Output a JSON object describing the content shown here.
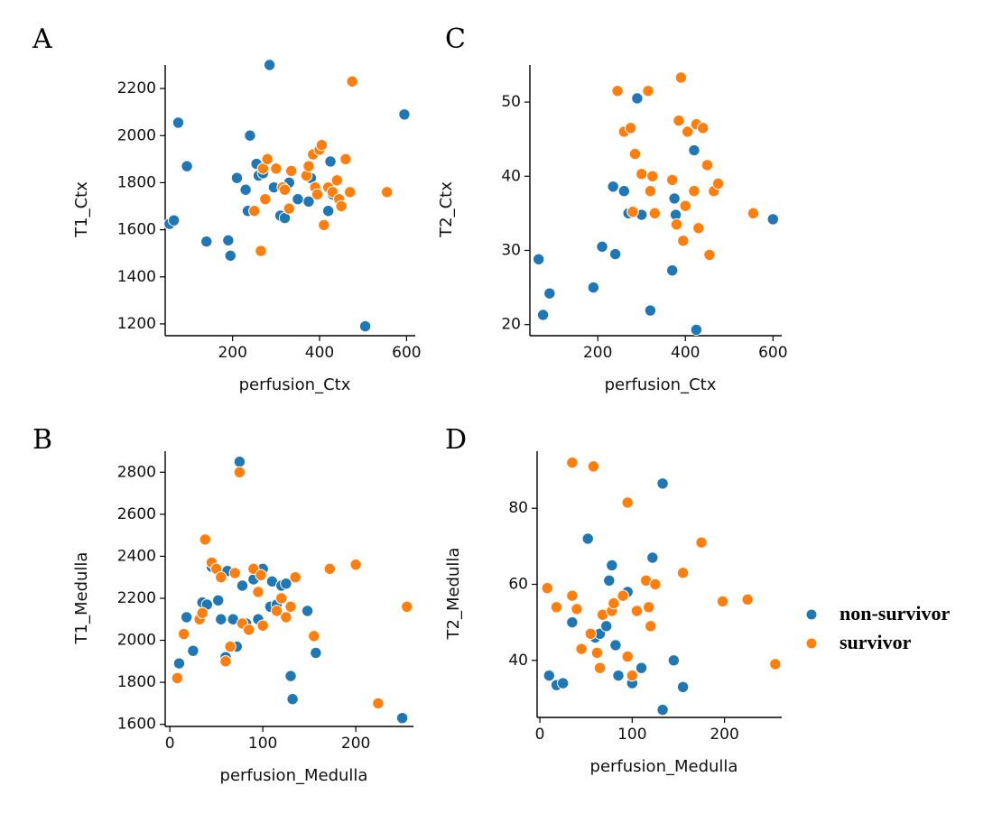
{
  "colors": {
    "non_survivor": "#1f77b4",
    "survivor": "#ff7f0e"
  },
  "legend": {
    "entries": [
      {
        "label": "non-survivor",
        "series": "non_survivor"
      },
      {
        "label": "survivor",
        "series": "survivor"
      }
    ]
  },
  "chart_data": [
    {
      "panel": "A",
      "type": "scatter",
      "xlabel": "perfusion_Ctx",
      "ylabel": "T1_Ctx",
      "xlim": [
        45,
        620
      ],
      "ylim": [
        1150,
        2300
      ],
      "xticks": [
        200,
        400,
        600
      ],
      "yticks": [
        1200,
        1400,
        1600,
        1800,
        2000,
        2200
      ],
      "series": [
        {
          "name": "non-survivor",
          "key": "non_survivor",
          "points": [
            [
              55,
              1625
            ],
            [
              65,
              1640
            ],
            [
              75,
              2055
            ],
            [
              95,
              1870
            ],
            [
              140,
              1550
            ],
            [
              190,
              1555
            ],
            [
              195,
              1490
            ],
            [
              210,
              1820
            ],
            [
              230,
              1770
            ],
            [
              235,
              1680
            ],
            [
              240,
              2000
            ],
            [
              255,
              1880
            ],
            [
              260,
              1830
            ],
            [
              270,
              1840
            ],
            [
              285,
              2300
            ],
            [
              295,
              1780
            ],
            [
              310,
              1660
            ],
            [
              320,
              1650
            ],
            [
              330,
              1800
            ],
            [
              350,
              1730
            ],
            [
              375,
              1720
            ],
            [
              380,
              1820
            ],
            [
              390,
              1780
            ],
            [
              420,
              1680
            ],
            [
              425,
              1890
            ],
            [
              430,
              1750
            ],
            [
              505,
              1190
            ],
            [
              595,
              2090
            ]
          ]
        },
        {
          "name": "survivor",
          "key": "survivor",
          "points": [
            [
              250,
              1680
            ],
            [
              265,
              1510
            ],
            [
              270,
              1860
            ],
            [
              275,
              1730
            ],
            [
              280,
              1900
            ],
            [
              300,
              1860
            ],
            [
              315,
              1780
            ],
            [
              320,
              1770
            ],
            [
              330,
              1690
            ],
            [
              335,
              1850
            ],
            [
              370,
              1830
            ],
            [
              375,
              1870
            ],
            [
              385,
              1920
            ],
            [
              390,
              1780
            ],
            [
              395,
              1750
            ],
            [
              400,
              1940
            ],
            [
              405,
              1960
            ],
            [
              410,
              1620
            ],
            [
              420,
              1780
            ],
            [
              430,
              1760
            ],
            [
              440,
              1810
            ],
            [
              445,
              1730
            ],
            [
              450,
              1700
            ],
            [
              460,
              1900
            ],
            [
              470,
              1760
            ],
            [
              475,
              2230
            ],
            [
              555,
              1760
            ]
          ]
        }
      ]
    },
    {
      "panel": "B",
      "type": "scatter",
      "xlabel": "perfusion_Medulla",
      "ylabel": "T1_Medulla",
      "xlim": [
        -5,
        262
      ],
      "ylim": [
        1590,
        2900
      ],
      "xticks": [
        0,
        100,
        200
      ],
      "yticks": [
        1600,
        1800,
        2000,
        2200,
        2400,
        2600,
        2800
      ],
      "series": [
        {
          "name": "non-survivor",
          "key": "non_survivor",
          "points": [
            [
              10,
              1890
            ],
            [
              18,
              2110
            ],
            [
              25,
              1950
            ],
            [
              35,
              2180
            ],
            [
              40,
              2170
            ],
            [
              45,
              2350
            ],
            [
              52,
              2190
            ],
            [
              55,
              2100
            ],
            [
              60,
              1920
            ],
            [
              62,
              2330
            ],
            [
              68,
              2100
            ],
            [
              72,
              1970
            ],
            [
              75,
              2850
            ],
            [
              78,
              2260
            ],
            [
              82,
              2080
            ],
            [
              90,
              2290
            ],
            [
              95,
              2100
            ],
            [
              100,
              2340
            ],
            [
              108,
              2160
            ],
            [
              110,
              2280
            ],
            [
              115,
              2170
            ],
            [
              120,
              2260
            ],
            [
              125,
              2270
            ],
            [
              130,
              1830
            ],
            [
              132,
              1720
            ],
            [
              148,
              2140
            ],
            [
              157,
              1940
            ],
            [
              250,
              1630
            ]
          ]
        },
        {
          "name": "survivor",
          "key": "survivor",
          "points": [
            [
              8,
              1820
            ],
            [
              15,
              2030
            ],
            [
              32,
              2100
            ],
            [
              35,
              2130
            ],
            [
              38,
              2480
            ],
            [
              45,
              2370
            ],
            [
              50,
              2340
            ],
            [
              55,
              2300
            ],
            [
              60,
              1900
            ],
            [
              65,
              1970
            ],
            [
              70,
              2320
            ],
            [
              75,
              2800
            ],
            [
              78,
              2080
            ],
            [
              85,
              2050
            ],
            [
              90,
              2340
            ],
            [
              95,
              2230
            ],
            [
              98,
              2310
            ],
            [
              100,
              2070
            ],
            [
              115,
              2140
            ],
            [
              120,
              2200
            ],
            [
              125,
              2110
            ],
            [
              130,
              2160
            ],
            [
              135,
              2300
            ],
            [
              155,
              2020
            ],
            [
              172,
              2340
            ],
            [
              200,
              2360
            ],
            [
              224,
              1700
            ],
            [
              255,
              2160
            ]
          ]
        }
      ]
    },
    {
      "panel": "C",
      "type": "scatter",
      "xlabel": "perfusion_Ctx",
      "ylabel": "T2_Ctx",
      "xlim": [
        45,
        620
      ],
      "ylim": [
        18.5,
        55
      ],
      "xticks": [
        200,
        400,
        600
      ],
      "yticks": [
        20,
        30,
        40,
        50
      ],
      "series": [
        {
          "name": "non-survivor",
          "key": "non_survivor",
          "points": [
            [
              65,
              28.8
            ],
            [
              75,
              21.3
            ],
            [
              90,
              24.2
            ],
            [
              190,
              25.0
            ],
            [
              210,
              30.5
            ],
            [
              235,
              38.6
            ],
            [
              240,
              29.5
            ],
            [
              260,
              38.0
            ],
            [
              270,
              35.0
            ],
            [
              280,
              35.3
            ],
            [
              290,
              50.5
            ],
            [
              300,
              34.8
            ],
            [
              320,
              21.9
            ],
            [
              325,
              40.0
            ],
            [
              370,
              27.3
            ],
            [
              375,
              37.0
            ],
            [
              378,
              34.8
            ],
            [
              420,
              43.5
            ],
            [
              425,
              19.3
            ],
            [
              600,
              34.2
            ]
          ]
        },
        {
          "name": "survivor",
          "key": "survivor",
          "points": [
            [
              245,
              51.5
            ],
            [
              260,
              46.0
            ],
            [
              275,
              46.5
            ],
            [
              280,
              35.2
            ],
            [
              285,
              43.0
            ],
            [
              300,
              40.3
            ],
            [
              315,
              51.5
            ],
            [
              320,
              38.0
            ],
            [
              325,
              40.0
            ],
            [
              330,
              35.0
            ],
            [
              370,
              39.5
            ],
            [
              380,
              33.5
            ],
            [
              385,
              47.5
            ],
            [
              390,
              53.3
            ],
            [
              395,
              31.3
            ],
            [
              400,
              36.0
            ],
            [
              405,
              46.0
            ],
            [
              420,
              38.0
            ],
            [
              425,
              47.0
            ],
            [
              430,
              33.0
            ],
            [
              440,
              46.5
            ],
            [
              450,
              41.5
            ],
            [
              455,
              29.4
            ],
            [
              465,
              38.0
            ],
            [
              475,
              39.0
            ],
            [
              555,
              35.0
            ]
          ]
        }
      ]
    },
    {
      "panel": "D",
      "type": "scatter",
      "xlabel": "perfusion_Medulla",
      "ylabel": "T2_Medulla",
      "xlim": [
        -3,
        262
      ],
      "ylim": [
        25,
        95
      ],
      "xticks": [
        0,
        100,
        200
      ],
      "yticks": [
        40,
        60,
        80
      ],
      "series": [
        {
          "name": "non-survivor",
          "key": "non_survivor",
          "points": [
            [
              10,
              36
            ],
            [
              18,
              33.5
            ],
            [
              25,
              34
            ],
            [
              35,
              50
            ],
            [
              52,
              72
            ],
            [
              60,
              46
            ],
            [
              65,
              47
            ],
            [
              72,
              49
            ],
            [
              75,
              61
            ],
            [
              78,
              65
            ],
            [
              82,
              44
            ],
            [
              85,
              36
            ],
            [
              95,
              58
            ],
            [
              100,
              34
            ],
            [
              110,
              38
            ],
            [
              122,
              67
            ],
            [
              133,
              86.5
            ],
            [
              133,
              27
            ],
            [
              145,
              40
            ],
            [
              155,
              33
            ]
          ]
        },
        {
          "name": "survivor",
          "key": "survivor",
          "points": [
            [
              8,
              59
            ],
            [
              18,
              54
            ],
            [
              35,
              57
            ],
            [
              35,
              92
            ],
            [
              40,
              53.5
            ],
            [
              45,
              43
            ],
            [
              55,
              47
            ],
            [
              58,
              91
            ],
            [
              62,
              42
            ],
            [
              65,
              38
            ],
            [
              68,
              52
            ],
            [
              78,
              53
            ],
            [
              80,
              55
            ],
            [
              90,
              57
            ],
            [
              95,
              81.5
            ],
            [
              95,
              41
            ],
            [
              100,
              36
            ],
            [
              105,
              53
            ],
            [
              115,
              61
            ],
            [
              118,
              54
            ],
            [
              120,
              49
            ],
            [
              125,
              60
            ],
            [
              155,
              63
            ],
            [
              175,
              71
            ],
            [
              198,
              55.5
            ],
            [
              225,
              56
            ],
            [
              255,
              39
            ]
          ]
        }
      ]
    }
  ]
}
